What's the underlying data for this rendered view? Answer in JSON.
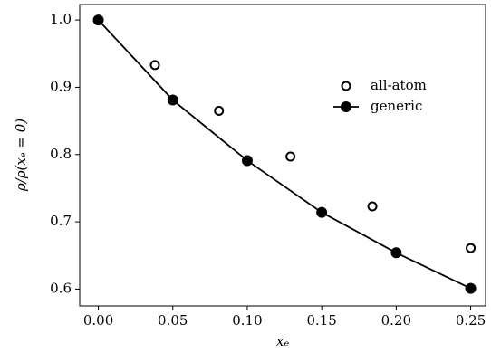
{
  "chart_data": {
    "type": "line",
    "xlabel": "xₑ",
    "ylabel": "ρ/ρ(xₑ = 0)",
    "xlim": [
      -0.0125,
      0.26
    ],
    "ylim": [
      0.575,
      1.023
    ],
    "xticks": [
      {
        "value": 0,
        "label": "0.00"
      },
      {
        "value": 0.05,
        "label": "0.05"
      },
      {
        "value": 0.1,
        "label": "0.10"
      },
      {
        "value": 0.15,
        "label": "0.15"
      },
      {
        "value": 0.2,
        "label": "0.20"
      },
      {
        "value": 0.25,
        "label": "0.25"
      }
    ],
    "yticks": [
      {
        "value": 0.6,
        "label": "0.6"
      },
      0.7,
      0.8,
      0.9,
      {
        "value": 1,
        "label": "1.0"
      }
    ],
    "grid": false,
    "legend": "upper right",
    "series": [
      {
        "name": "all-atom",
        "color": "#000000",
        "marker": "open",
        "line": false,
        "x": [
          0,
          0.038,
          0.081,
          0.129,
          0.184,
          0.25
        ],
        "values": [
          1.0,
          0.933,
          0.865,
          0.797,
          0.723,
          0.661
        ]
      },
      {
        "name": "generic",
        "color": "#000000",
        "marker": "filled",
        "line": true,
        "x": [
          0,
          0.05,
          0.1,
          0.15,
          0.2,
          0.25
        ],
        "values": [
          1.0,
          0.881,
          0.791,
          0.714,
          0.654,
          0.601
        ]
      }
    ]
  }
}
